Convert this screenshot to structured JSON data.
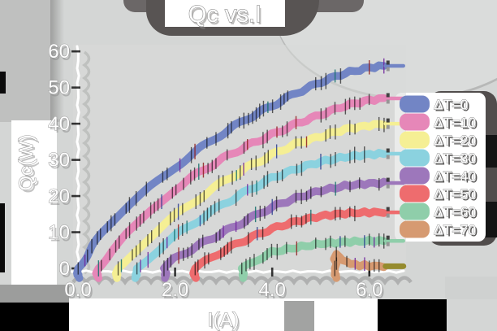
{
  "title": "Qc vs.I",
  "axes": {
    "x_label": "I(A)",
    "y_label": "Qc(W)",
    "x_ticks": [
      "0.0",
      "2.0",
      "4.0",
      "6.0"
    ],
    "x_tick_values": [
      0,
      2,
      4,
      6
    ],
    "y_ticks": [
      "0",
      "10",
      "20",
      "30",
      "40",
      "50",
      "60"
    ],
    "y_tick_values": [
      0,
      10,
      20,
      30,
      40,
      50,
      60
    ]
  },
  "legend": {
    "position": "right",
    "entries": [
      {
        "label": "ΔT=0",
        "color": "#7285c5"
      },
      {
        "label": "ΔT=10",
        "color": "#e687b8"
      },
      {
        "label": "ΔT=20",
        "color": "#f5ef94"
      },
      {
        "label": "ΔT=30",
        "color": "#8bd2df"
      },
      {
        "label": "ΔT=40",
        "color": "#9d77bb"
      },
      {
        "label": "ΔT=50",
        "color": "#ee6c6e"
      },
      {
        "label": "ΔT=60",
        "color": "#8fceaa"
      },
      {
        "label": "ΔT=70",
        "color": "#d69a71"
      }
    ]
  },
  "chart_data": {
    "type": "line",
    "style": "xkcd-sketch",
    "title": "Qc vs.I",
    "xlabel": "I(A)",
    "ylabel": "Qc(W)",
    "xlim": [
      0,
      6.6
    ],
    "ylim": [
      0,
      62
    ],
    "grid": false,
    "legend_position": "right",
    "series": [
      {
        "name": "ΔT=0",
        "color": "#7285c5",
        "x": [
          0,
          0.3,
          0.6,
          1,
          1.5,
          2,
          2.5,
          3,
          3.5,
          4,
          4.5,
          5,
          5.5,
          6,
          6.3
        ],
        "y": [
          0,
          6,
          11.5,
          16.5,
          22.5,
          28,
          33,
          37.5,
          41.5,
          45,
          48.5,
          51.5,
          54,
          55.5,
          56
        ]
      },
      {
        "name": "ΔT=10",
        "color": "#e687b8",
        "x": [
          0.4,
          0.7,
          1,
          1.5,
          2,
          2.5,
          3,
          3.5,
          4,
          4.5,
          5,
          5.5,
          6,
          6.3
        ],
        "y": [
          0,
          5,
          9.5,
          16,
          22,
          26.5,
          30.5,
          34,
          37,
          40,
          42.5,
          45,
          46.5,
          47
        ]
      },
      {
        "name": "ΔT=20",
        "color": "#f5ef94",
        "x": [
          0.8,
          1.1,
          1.5,
          2,
          2.5,
          3,
          3.5,
          4,
          4.5,
          5,
          5.5,
          6,
          6.3
        ],
        "y": [
          0,
          4,
          9,
          14.5,
          19.5,
          24,
          28,
          31.5,
          34.5,
          36.5,
          38.5,
          39.5,
          40
        ]
      },
      {
        "name": "ΔT=30",
        "color": "#8bd2df",
        "x": [
          1.2,
          1.5,
          2,
          2.5,
          3,
          3.5,
          4,
          4.5,
          5,
          5.5,
          6,
          6.3
        ],
        "y": [
          0,
          3.5,
          9,
          13.5,
          17.8,
          21.5,
          25,
          27.5,
          29.5,
          30.8,
          31.5,
          31.7
        ]
      },
      {
        "name": "ΔT=40",
        "color": "#9d77bb",
        "x": [
          1.8,
          2,
          2.5,
          3,
          3.5,
          4,
          4.5,
          5,
          5.5,
          6,
          6.3
        ],
        "y": [
          0,
          2.7,
          6.5,
          10,
          13.5,
          17,
          19.5,
          21.5,
          22.8,
          23.5,
          23.6
        ]
      },
      {
        "name": "ΔT=50",
        "color": "#ee6c6e",
        "x": [
          2.4,
          2.7,
          3,
          3.5,
          4,
          4.5,
          5,
          5.5,
          6,
          6.3
        ],
        "y": [
          0,
          2.5,
          5,
          8.2,
          11,
          13,
          14.5,
          15.2,
          15.5,
          15.5
        ]
      },
      {
        "name": "ΔT=60",
        "color": "#8fceaa",
        "x": [
          3.4,
          3.7,
          4,
          4.5,
          5,
          5.5,
          6,
          6.3
        ],
        "y": [
          0,
          2.5,
          4.5,
          5.8,
          6.8,
          7.3,
          7.6,
          7.6
        ]
      },
      {
        "name": "ΔT=70",
        "color": "#d69a71",
        "x": [
          5.3,
          5.45,
          5.7,
          6,
          6.3
        ],
        "y": [
          4,
          2.2,
          1,
          0.7,
          0.6
        ]
      }
    ]
  },
  "colors": {
    "background": "#d4d6d5",
    "text": "#ffffff",
    "text_outline": "#8d8d8d",
    "title_blob": "#585453",
    "legend_shadow": "#514d4c",
    "tan_cap_olive": "#958b2e"
  }
}
